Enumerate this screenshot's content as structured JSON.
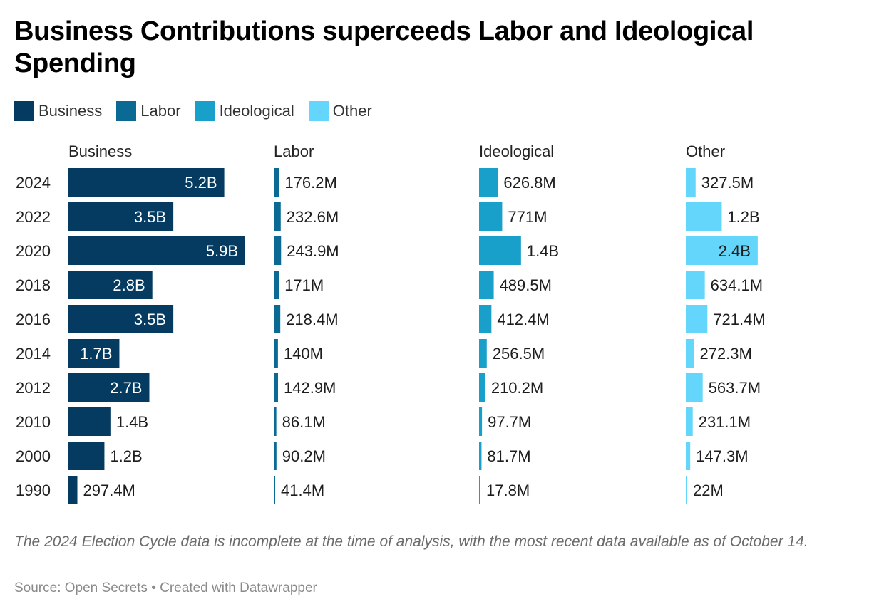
{
  "title": "Business Contributions superceeds Labor and Ideological Spending",
  "legend": [
    {
      "label": "Business",
      "color": "#053b60"
    },
    {
      "label": "Labor",
      "color": "#0a6a93"
    },
    {
      "label": "Ideological",
      "color": "#18a0cb"
    },
    {
      "label": "Other",
      "color": "#65d6fb"
    }
  ],
  "note": "The 2024 Election Cycle data is incomplete at the time of analysis, with the most recent data available as of October 14.",
  "source": "Source: Open Secrets • Created with Datawrapper",
  "chart_data": {
    "type": "bar",
    "layout": "small-multiples-horizontal",
    "title": "Business Contributions superceeds Labor and Ideological Spending",
    "xlabel": "",
    "ylabel": "",
    "units": "USD",
    "grid": false,
    "legend_position": "top-left",
    "categories": [
      "2024",
      "2022",
      "2020",
      "2018",
      "2016",
      "2014",
      "2012",
      "2010",
      "2000",
      "1990"
    ],
    "series": [
      {
        "name": "Business",
        "color": "#053b60",
        "values": [
          5200000000,
          3500000000,
          5900000000,
          2800000000,
          3500000000,
          1700000000,
          2700000000,
          1400000000,
          1200000000,
          297400000
        ],
        "labels": [
          "5.2B",
          "3.5B",
          "5.9B",
          "2.8B",
          "3.5B",
          "1.7B",
          "2.7B",
          "1.4B",
          "1.2B",
          "297.4M"
        ]
      },
      {
        "name": "Labor",
        "color": "#0a6a93",
        "values": [
          176200000,
          232600000,
          243900000,
          171000000,
          218400000,
          140000000,
          142900000,
          86100000,
          90200000,
          41400000
        ],
        "labels": [
          "176.2M",
          "232.6M",
          "243.9M",
          "171M",
          "218.4M",
          "140M",
          "142.9M",
          "86.1M",
          "90.2M",
          "41.4M"
        ]
      },
      {
        "name": "Ideological",
        "color": "#18a0cb",
        "values": [
          626800000,
          771000000,
          1400000000,
          489500000,
          412400000,
          256500000,
          210200000,
          97700000,
          81700000,
          17800000
        ],
        "labels": [
          "626.8M",
          "771M",
          "1.4B",
          "489.5M",
          "412.4M",
          "256.5M",
          "210.2M",
          "97.7M",
          "81.7M",
          "17.8M"
        ]
      },
      {
        "name": "Other",
        "color": "#65d6fb",
        "values": [
          327500000,
          1200000000,
          2400000000,
          634100000,
          721400000,
          272300000,
          563700000,
          231100000,
          147300000,
          22000000
        ],
        "labels": [
          "327.5M",
          "1.2B",
          "2.4B",
          "634.1M",
          "721.4M",
          "272.3M",
          "563.7M",
          "231.1M",
          "147.3M",
          "22M"
        ]
      }
    ],
    "xlim": [
      0,
      5900000000
    ]
  }
}
